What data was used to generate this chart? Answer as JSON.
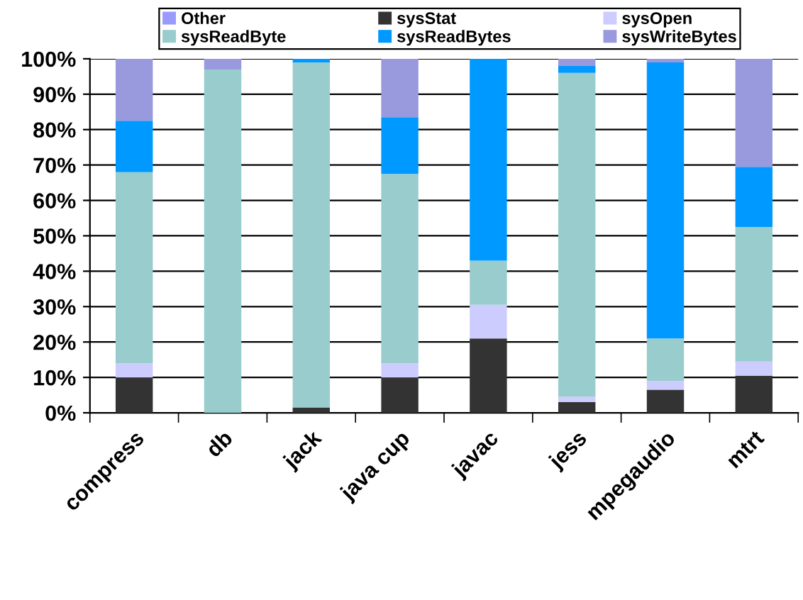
{
  "chart_data": {
    "type": "bar",
    "stacked": true,
    "categories": [
      "compress",
      "db",
      "jack",
      "java cup",
      "javac",
      "jess",
      "mpegaudio",
      "mtrt"
    ],
    "series": [
      {
        "name": "Other",
        "color": "#9999ff",
        "values": [
          0,
          0,
          0,
          0,
          0,
          0,
          0,
          0
        ]
      },
      {
        "name": "sysStat",
        "color": "#333333",
        "values": [
          10,
          0,
          1.5,
          10,
          21,
          3,
          6.5,
          10.5
        ]
      },
      {
        "name": "sysOpen",
        "color": "#ccccff",
        "values": [
          4,
          0,
          0,
          4,
          9.5,
          1.5,
          2.5,
          4
        ]
      },
      {
        "name": "sysReadByte",
        "color": "#99cccc",
        "values": [
          54,
          97,
          97.5,
          53.5,
          12.5,
          91.5,
          12,
          38
        ]
      },
      {
        "name": "sysReadBytes",
        "color": "#0099ff",
        "values": [
          14.5,
          0,
          1,
          16,
          57,
          2,
          78,
          17
        ]
      },
      {
        "name": "sysWriteBytes",
        "color": "#9999dd",
        "values": [
          17.5,
          3,
          0,
          16.5,
          0,
          2,
          1,
          30.5
        ]
      }
    ],
    "ylim": [
      0,
      100
    ],
    "yticks": [
      {
        "value": 0,
        "label": "0%"
      },
      {
        "value": 10,
        "label": "10%"
      },
      {
        "value": 20,
        "label": "20%"
      },
      {
        "value": 30,
        "label": "30%"
      },
      {
        "value": 40,
        "label": "40%"
      },
      {
        "value": 50,
        "label": "50%"
      },
      {
        "value": 60,
        "label": "60%"
      },
      {
        "value": 70,
        "label": "70%"
      },
      {
        "value": 80,
        "label": "80%"
      },
      {
        "value": 90,
        "label": "90%"
      },
      {
        "value": 100,
        "label": "100%"
      }
    ],
    "grid": "y",
    "legend": "top"
  }
}
